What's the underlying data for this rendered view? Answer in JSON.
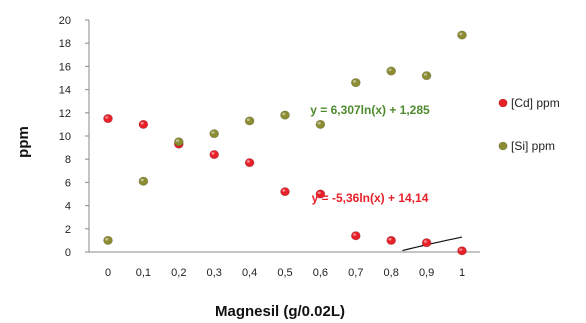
{
  "chart_data": {
    "type": "scatter",
    "title": "",
    "xlabel": "Magnesil (g/0.02L)",
    "ylabel": "ppm",
    "x": [
      0,
      0.1,
      0.2,
      0.3,
      0.4,
      0.5,
      0.6,
      0.7,
      0.8,
      0.9,
      1
    ],
    "x_tick_labels": [
      "0",
      "0,1",
      "0,2",
      "0,3",
      "0,4",
      "0,5",
      "0,6",
      "0,7",
      "0,8",
      "0,9",
      "1"
    ],
    "y_ticks": [
      0,
      2,
      4,
      6,
      8,
      10,
      12,
      14,
      16,
      18,
      20
    ],
    "xlim": [
      0,
      1
    ],
    "ylim": [
      0,
      20
    ],
    "grid": false,
    "legend_position": "right",
    "series": [
      {
        "name": "[Cd] ppm",
        "color": "#e8202a",
        "values": [
          11.5,
          11.0,
          9.3,
          8.4,
          7.7,
          5.2,
          5.0,
          1.4,
          1.0,
          0.8,
          0.1
        ],
        "trendline": {
          "type": "log",
          "a": -5.36,
          "b": 14.14,
          "label": "y = -5,36ln(x) + 14,14",
          "label_color": "#e8202a"
        }
      },
      {
        "name": "[Si] ppm",
        "color": "#8c8c32",
        "values": [
          1.0,
          6.1,
          9.5,
          10.2,
          11.3,
          11.8,
          11.0,
          14.6,
          15.6,
          15.2,
          18.7
        ],
        "trendline": {
          "type": "log",
          "a": 6.307,
          "b": 1.285,
          "label": "y = 6,307ln(x) + 1,285",
          "label_color": "#4f8a2e"
        }
      }
    ]
  }
}
